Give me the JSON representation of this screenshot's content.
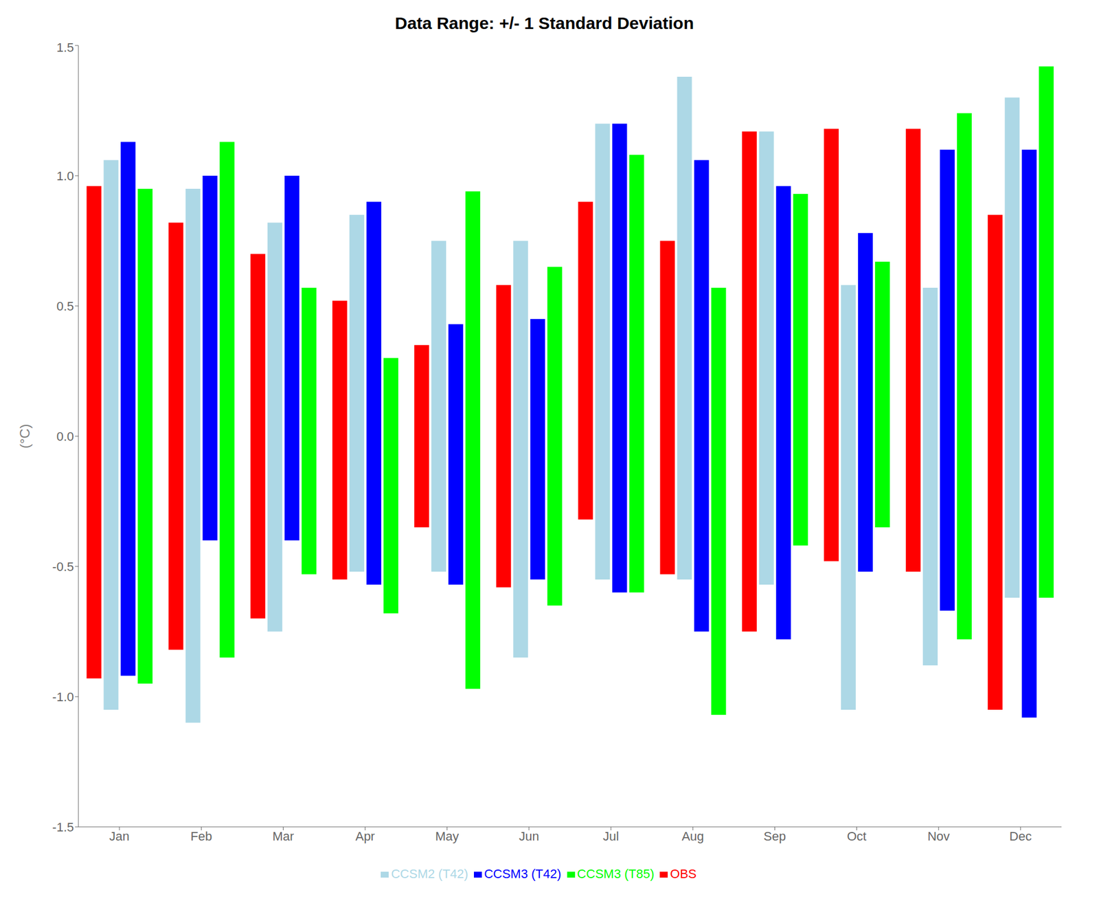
{
  "chart_data": {
    "type": "bar",
    "title": "Data Range: +/- 1 Standard Deviation",
    "y_label": "(°C)",
    "categories": [
      "Jan",
      "Feb",
      "Mar",
      "Apr",
      "May",
      "Jun",
      "Jul",
      "Aug",
      "Sep",
      "Oct",
      "Nov",
      "Dec"
    ],
    "series": [
      {
        "name": "OBS",
        "color": "#FF0000",
        "values": [
          [
            -0.93,
            0.96
          ],
          [
            -0.82,
            0.82
          ],
          [
            -0.7,
            0.7
          ],
          [
            -0.55,
            0.52
          ],
          [
            -0.35,
            0.35
          ],
          [
            -0.58,
            0.58
          ],
          [
            -0.32,
            0.9
          ],
          [
            -0.53,
            0.75
          ],
          [
            -0.75,
            1.17
          ],
          [
            -0.48,
            1.18
          ],
          [
            -0.52,
            1.18
          ],
          [
            -1.05,
            0.85
          ]
        ]
      },
      {
        "name": "CCSM2 (T42)",
        "color": "#ADD8E6",
        "values": [
          [
            -1.05,
            1.06
          ],
          [
            -1.1,
            0.95
          ],
          [
            -0.75,
            0.82
          ],
          [
            -0.52,
            0.85
          ],
          [
            -0.52,
            0.75
          ],
          [
            -0.85,
            0.75
          ],
          [
            -0.55,
            1.2
          ],
          [
            -0.55,
            1.38
          ],
          [
            -0.57,
            1.17
          ],
          [
            -1.05,
            0.58
          ],
          [
            -0.88,
            0.57
          ],
          [
            -0.62,
            1.3
          ]
        ]
      },
      {
        "name": "CCSM3 (T42)",
        "color": "#0000FF",
        "values": [
          [
            -0.92,
            1.13
          ],
          [
            -0.4,
            1.0
          ],
          [
            -0.4,
            1.0
          ],
          [
            -0.57,
            0.9
          ],
          [
            -0.57,
            0.43
          ],
          [
            -0.55,
            0.45
          ],
          [
            -0.6,
            1.2
          ],
          [
            -0.75,
            1.06
          ],
          [
            -0.78,
            0.96
          ],
          [
            -0.52,
            0.78
          ],
          [
            -0.67,
            1.1
          ],
          [
            -1.08,
            1.1
          ]
        ]
      },
      {
        "name": "CCSM3 (T85)",
        "color": "#00FF00",
        "values": [
          [
            -0.95,
            0.95
          ],
          [
            -0.85,
            1.13
          ],
          [
            -0.53,
            0.57
          ],
          [
            -0.68,
            0.3
          ],
          [
            -0.97,
            0.94
          ],
          [
            -0.65,
            0.65
          ],
          [
            -0.6,
            1.08
          ],
          [
            -1.07,
            0.57
          ],
          [
            -0.42,
            0.93
          ],
          [
            -0.35,
            0.67
          ],
          [
            -0.78,
            1.24
          ],
          [
            -0.62,
            1.42
          ]
        ]
      }
    ],
    "ylim": [
      -1.5,
      1.5
    ],
    "yticks": [
      -1.5,
      {
        "value": -1.0,
        "label": "-1.0"
      },
      -0.5,
      {
        "value": 0.0,
        "label": "0.0"
      },
      0.5,
      {
        "value": 1.0,
        "label": "1.0"
      },
      1.5
    ],
    "grid": false,
    "legend": "bottom"
  }
}
